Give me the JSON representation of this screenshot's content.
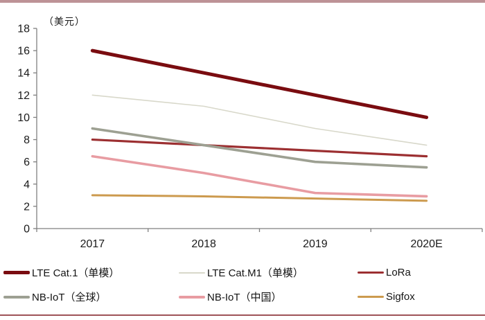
{
  "page": {
    "top_border_color": "#bd9296",
    "bottom_border_color": "#9e5257"
  },
  "chart_data": {
    "type": "line",
    "title": "",
    "unit_label": "（美元）",
    "x_categories": [
      "2017",
      "2018",
      "2019",
      "2020E"
    ],
    "y_ticks": [
      "0",
      "2",
      "4",
      "6",
      "8",
      "10",
      "12",
      "14",
      "16",
      "18"
    ],
    "ylim": [
      0,
      18
    ],
    "grid": false,
    "legend_position": "bottom",
    "axis_color": "#7f7f7f",
    "tick_label_color": "#1a1a1a",
    "series": [
      {
        "id": "lte-cat1",
        "name": "LTE Cat.1（单模）",
        "values": [
          16,
          14,
          12,
          10
        ],
        "color": "#7a0c10",
        "width": 5
      },
      {
        "id": "lte-catm1",
        "name": "LTE Cat.M1（单模）",
        "values": [
          12,
          11,
          9,
          7.5
        ],
        "color": "#d8d8ca",
        "width": 1.6
      },
      {
        "id": "lora",
        "name": "LoRa",
        "values": [
          8,
          7.5,
          7,
          6.5
        ],
        "color": "#9c2f31",
        "width": 3.2
      },
      {
        "id": "nbiot-global",
        "name": "NB-IoT（全球）",
        "values": [
          9,
          7.5,
          6,
          5.5
        ],
        "color": "#9da092",
        "width": 3.6
      },
      {
        "id": "nbiot-china",
        "name": "NB-IoT（中国）",
        "values": [
          6.5,
          5,
          3.2,
          2.9
        ],
        "color": "#e89ca2",
        "width": 3.6
      },
      {
        "id": "sigfox",
        "name": "Sigfox",
        "values": [
          3,
          2.9,
          2.7,
          2.5
        ],
        "color": "#cc9a4e",
        "width": 3
      }
    ]
  }
}
